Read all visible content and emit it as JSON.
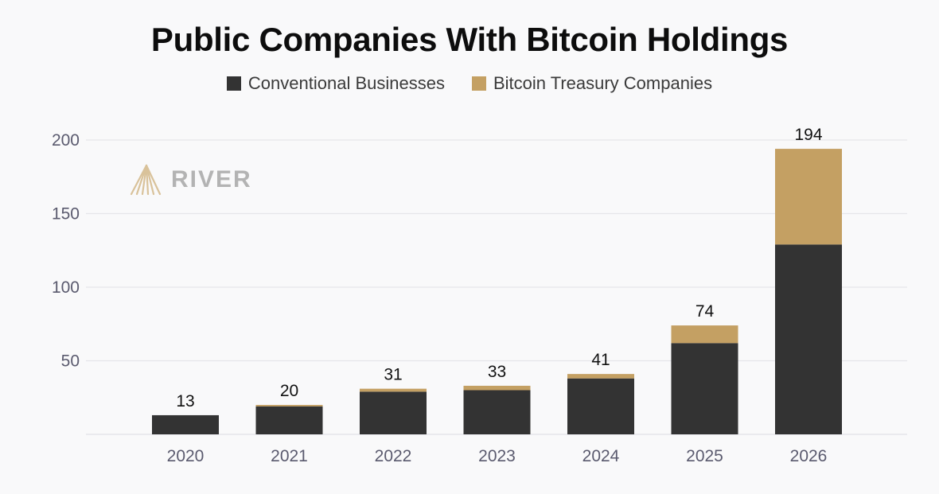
{
  "colors": {
    "conventional": "#333333",
    "treasury": "#c4a063",
    "grid": "#e6e6ea",
    "axis_text": "#5a5a6e"
  },
  "chart_data": {
    "type": "bar",
    "stacked": true,
    "title": "Public Companies With Bitcoin Holdings",
    "categories": [
      "2020",
      "2021",
      "2022",
      "2023",
      "2024",
      "2025",
      "2026"
    ],
    "series": [
      {
        "name": "Conventional Businesses",
        "values": [
          13,
          19,
          29,
          30,
          38,
          62,
          129
        ]
      },
      {
        "name": "Bitcoin Treasury Companies",
        "values": [
          0,
          1,
          2,
          3,
          3,
          12,
          65
        ]
      }
    ],
    "totals": [
      13,
      20,
      31,
      33,
      41,
      74,
      194
    ],
    "ylim": [
      0,
      200
    ],
    "yticks": [
      50,
      100,
      150,
      200
    ],
    "grid": true,
    "legend_position": "top-center",
    "watermark": "RIVER"
  }
}
